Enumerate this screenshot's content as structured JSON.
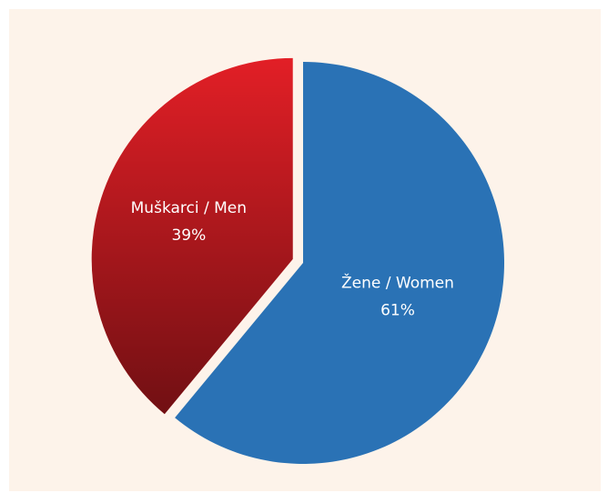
{
  "chart_data": {
    "type": "pie",
    "categories": [
      "Žene / Women",
      "Muškarci / Men"
    ],
    "values": [
      61,
      39
    ],
    "value_labels": [
      "61%",
      "39%"
    ],
    "colors": [
      "#2a72b5",
      "#e21f26"
    ]
  }
}
